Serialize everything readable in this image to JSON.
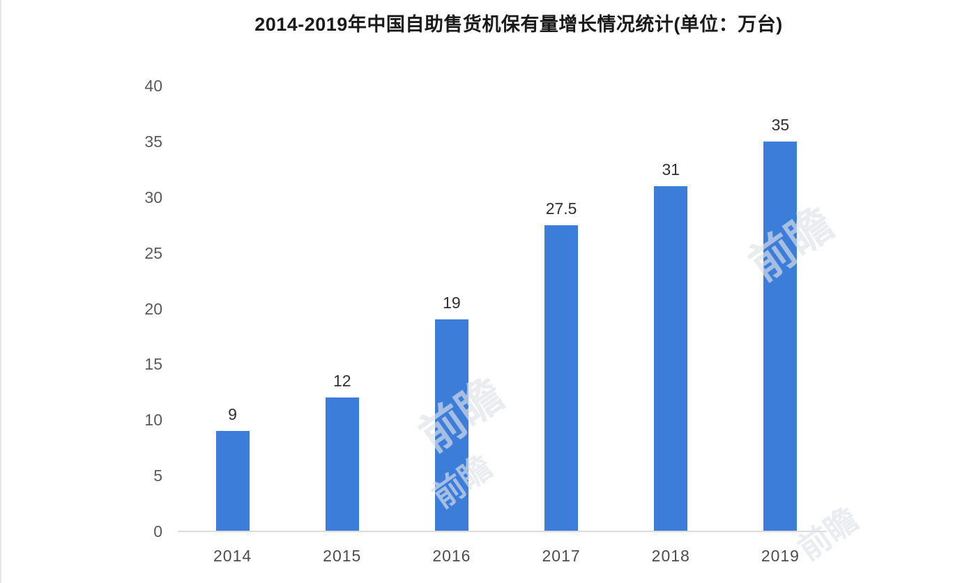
{
  "chart_data": {
    "type": "bar",
    "title": "2014-2019年中国自助售货机保有量增长情况统计(单位：万台)",
    "categories": [
      "2014",
      "2015",
      "2016",
      "2017",
      "2018",
      "2019"
    ],
    "values": [
      9,
      12,
      19,
      27.5,
      31,
      35
    ],
    "series_name": "自助售货机保有量",
    "xlabel": "",
    "ylabel": "",
    "ylim": [
      0,
      40
    ],
    "yticks": [
      0,
      5,
      10,
      15,
      20,
      25,
      30,
      35,
      40
    ],
    "grid": "off",
    "legend": "none",
    "bar_color": "#3b7dd8",
    "axis_line_color": "#dcdcdc",
    "ytick_color": "#595959",
    "xtick_color": "#4d4d4d",
    "value_label_color": "#303030",
    "title_color": "#1a1a1a"
  },
  "watermark": {
    "text": "前瞻"
  }
}
